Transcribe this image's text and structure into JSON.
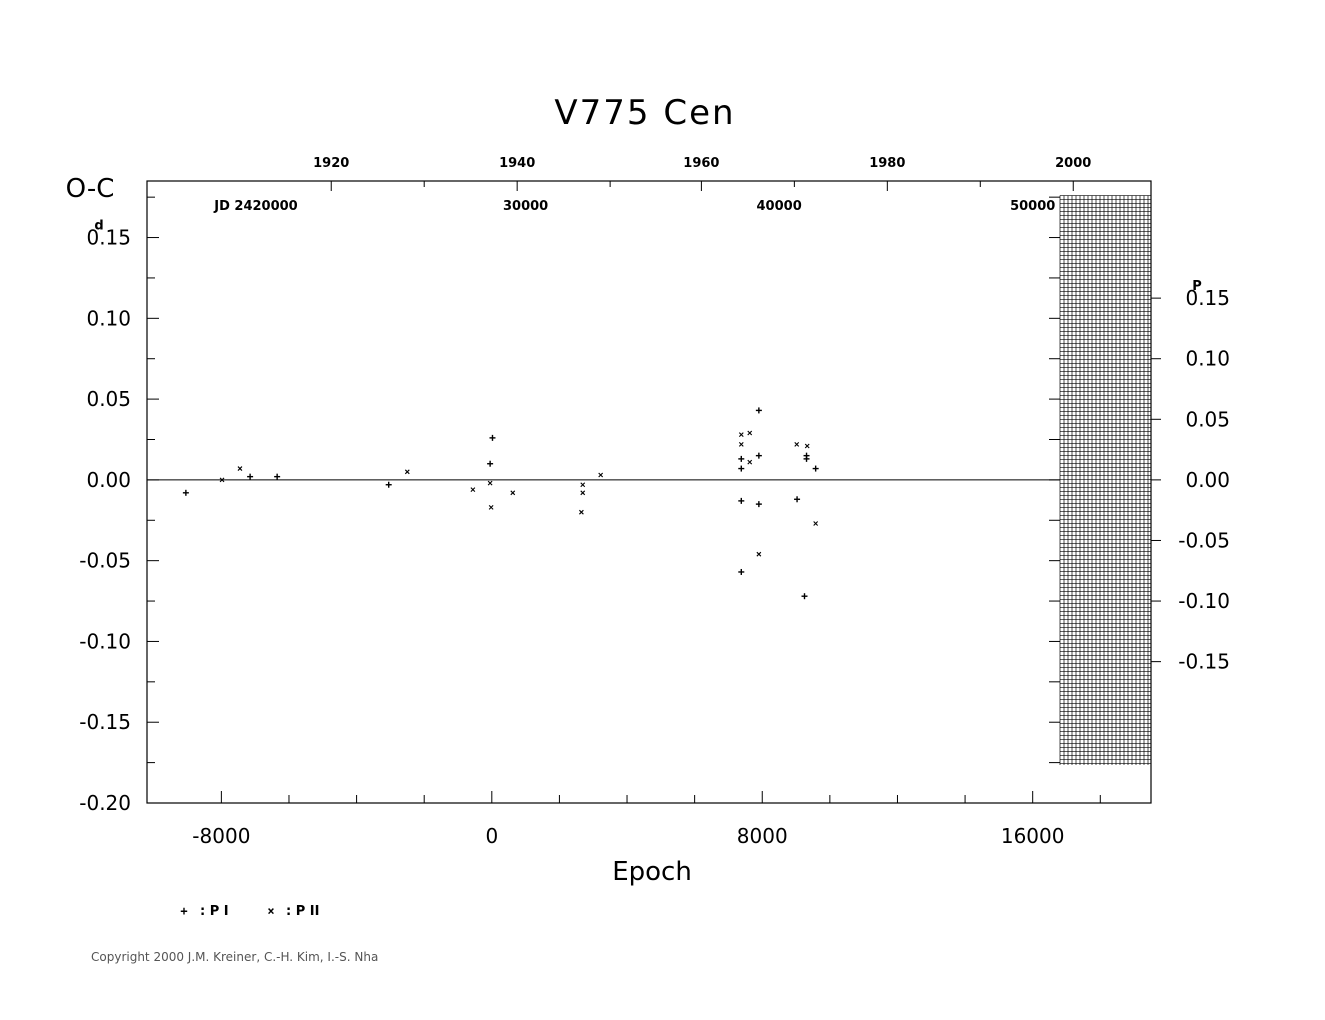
{
  "chart_data": {
    "type": "scatter",
    "title": "V775  Cen",
    "ylabel": "O-C",
    "ylabel_unit": "d",
    "xlabel": "Epoch",
    "xlim": [
      -10200,
      19500
    ],
    "ylim": [
      -0.2,
      0.185
    ],
    "x_ticks": [
      "-8000",
      "0",
      "8000",
      "16000"
    ],
    "x_tick_values": [
      -8000,
      0,
      8000,
      16000
    ],
    "y_ticks": [
      "0.15",
      "0.10",
      "0.05",
      "0.00",
      "-0.05",
      "-0.10",
      "-0.15",
      "-0.20"
    ],
    "y_tick_values": [
      0.15,
      0.1,
      0.05,
      0.0,
      -0.05,
      -0.1,
      -0.15,
      -0.2
    ],
    "top_year_ticks": [
      "1920",
      "1940",
      "1960",
      "1980",
      "2000"
    ],
    "top_year_epochs": [
      -4750,
      750,
      6200,
      11700,
      17200
    ],
    "jd_label": "JD 2420000",
    "jd_ticks": [
      "30000",
      "40000",
      "50000"
    ],
    "jd_epochs": [
      1000,
      8500,
      16000
    ],
    "right_axis_unit": "P",
    "right_ticks": [
      "0.15",
      "0.10",
      "0.05",
      "0.00",
      "-0.05",
      "-0.10",
      "-0.15"
    ],
    "right_tick_values": [
      0.15,
      0.1,
      0.05,
      0.0,
      -0.05,
      -0.1,
      -0.15
    ],
    "right_axis_to_left_scale": 0.75,
    "hatched_region_x": [
      17200,
      19900
    ],
    "hatched_region_y": [
      -0.1765,
      0.176
    ],
    "series": [
      {
        "name": "P I",
        "symbol": "+",
        "points": [
          [
            -9050,
            -0.008
          ],
          [
            -7150,
            0.002
          ],
          [
            -6350,
            0.002
          ],
          [
            -3050,
            -0.003
          ],
          [
            20,
            0.026
          ],
          [
            -50,
            0.01
          ],
          [
            7380,
            0.013
          ],
          [
            7380,
            0.007
          ],
          [
            7380,
            -0.013
          ],
          [
            7380,
            -0.057
          ],
          [
            7900,
            0.043
          ],
          [
            7900,
            0.015
          ],
          [
            7900,
            -0.015
          ],
          [
            9030,
            -0.012
          ],
          [
            9310,
            0.015
          ],
          [
            9310,
            0.013
          ],
          [
            9250,
            -0.072
          ],
          [
            9580,
            0.007
          ]
        ]
      },
      {
        "name": "P II",
        "symbol": "×",
        "points": [
          [
            -7980,
            0.0
          ],
          [
            -7450,
            0.007
          ],
          [
            -2500,
            0.005
          ],
          [
            -560,
            -0.006
          ],
          [
            -50,
            -0.002
          ],
          [
            -20,
            -0.017
          ],
          [
            620,
            -0.008
          ],
          [
            2690,
            -0.003
          ],
          [
            2690,
            -0.008
          ],
          [
            2650,
            -0.02
          ],
          [
            3220,
            0.003
          ],
          [
            7380,
            0.022
          ],
          [
            7380,
            0.028
          ],
          [
            7630,
            0.011
          ],
          [
            7630,
            0.029
          ],
          [
            7900,
            -0.046
          ],
          [
            9020,
            0.022
          ],
          [
            9330,
            0.021
          ],
          [
            9580,
            -0.027
          ]
        ]
      }
    ]
  },
  "legend": {
    "p1_symbol": "+",
    "p1_label": ": P I",
    "p2_symbol": "×",
    "p2_label": ": P II"
  },
  "copyright": "Copyright 2000 J.M. Kreiner, C.-H. Kim, I.-S. Nha"
}
